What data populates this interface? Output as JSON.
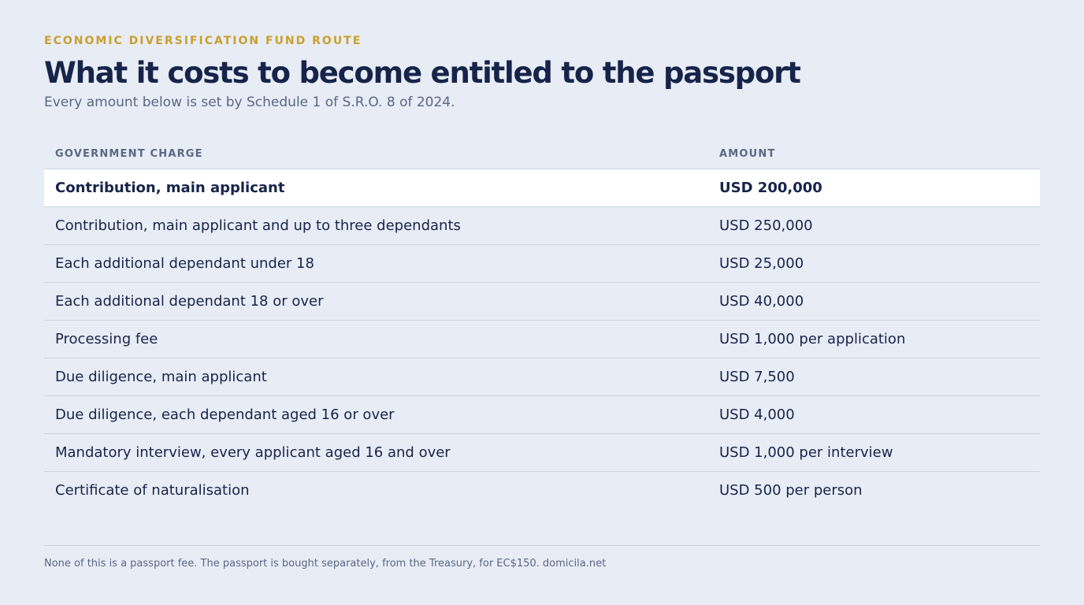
{
  "header": {
    "eyebrow": "ECONOMIC DIVERSIFICATION FUND ROUTE",
    "title": "What it costs to become entitled to the passport",
    "subtitle": "Every amount below is set by Schedule 1 of S.R.O. 8 of 2024."
  },
  "table": {
    "columns": [
      "GOVERNMENT CHARGE",
      "AMOUNT"
    ],
    "rows": [
      [
        "Contribution, main applicant",
        "USD 200,000"
      ],
      [
        "Contribution, main applicant and up to three dependants",
        "USD 250,000"
      ],
      [
        "Each additional dependant under 18",
        "USD 25,000"
      ],
      [
        "Each additional dependant 18 or over",
        "USD 40,000"
      ],
      [
        "Processing fee",
        "USD 1,000 per application"
      ],
      [
        "Due diligence, main applicant",
        "USD 7,500"
      ],
      [
        "Due diligence, each dependant aged 16 or over",
        "USD 4,000"
      ],
      [
        "Mandatory interview, every applicant aged 16 and over",
        "USD 1,000 per interview"
      ],
      [
        "Certificate of naturalisation",
        "USD 500 per person"
      ]
    ]
  },
  "footer": {
    "note": "None of this is a passport fee. The passport is bought separately, from the Treasury, for EC$150. domicila.net"
  }
}
